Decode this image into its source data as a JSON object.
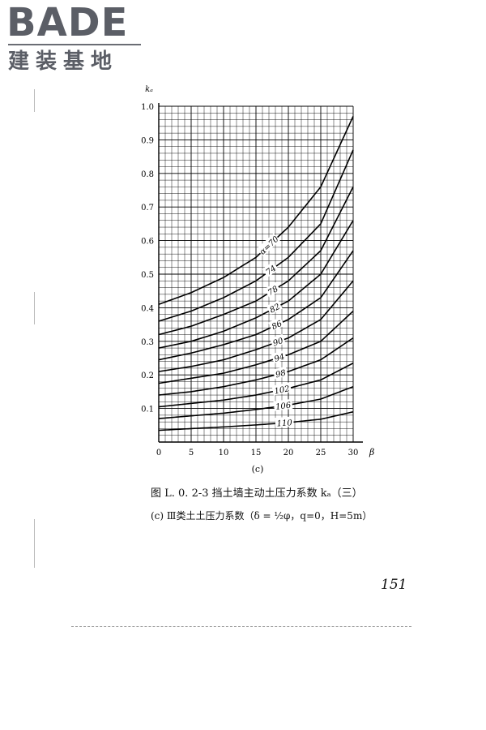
{
  "logo": {
    "wordmark": "BADE",
    "subtitle": "建装基地",
    "color": "#5b5e66"
  },
  "figure": {
    "panel_label": "(c)",
    "caption": "图 L. 0. 2-3   挡土墙主动土压力系数 kₐ（三）",
    "subcaption": "(c) Ⅲ类土土压力系数（δ = ½φ，q=0，H=5m）"
  },
  "page_number": "151",
  "chart_data": {
    "type": "line",
    "title": "",
    "xlabel": "β",
    "ylabel": "kₐ",
    "xlim": [
      0,
      30
    ],
    "ylim": [
      0,
      1.0
    ],
    "x_ticks": [
      0,
      5,
      10,
      15,
      20,
      25,
      30
    ],
    "y_ticks": [
      0.1,
      0.2,
      0.3,
      0.4,
      0.5,
      0.6,
      0.7,
      0.8,
      0.9,
      1.0
    ],
    "y_tick_labels": [
      "0.1",
      "0.2",
      "0.3",
      "0.4",
      "0.5",
      "0.6",
      "0.7",
      "0.8",
      "0.9",
      "1.0"
    ],
    "grid": true,
    "line_color": "#000000",
    "x": [
      0,
      5,
      10,
      15,
      20,
      25,
      30
    ],
    "series": [
      {
        "name": "α=70",
        "label": "α=70",
        "values": [
          0.41,
          0.445,
          0.49,
          0.55,
          0.64,
          0.76,
          0.97
        ]
      },
      {
        "name": "74",
        "label": "74",
        "values": [
          0.36,
          0.39,
          0.43,
          0.48,
          0.55,
          0.65,
          0.87
        ]
      },
      {
        "name": "78",
        "label": "78",
        "values": [
          0.32,
          0.345,
          0.38,
          0.42,
          0.48,
          0.57,
          0.76
        ]
      },
      {
        "name": "82",
        "label": "82",
        "values": [
          0.28,
          0.3,
          0.33,
          0.37,
          0.42,
          0.5,
          0.66
        ]
      },
      {
        "name": "86",
        "label": "86",
        "values": [
          0.245,
          0.265,
          0.29,
          0.32,
          0.365,
          0.43,
          0.57
        ]
      },
      {
        "name": "90",
        "label": "90",
        "values": [
          0.21,
          0.225,
          0.245,
          0.275,
          0.31,
          0.365,
          0.48
        ]
      },
      {
        "name": "94",
        "label": "94",
        "values": [
          0.175,
          0.19,
          0.205,
          0.23,
          0.26,
          0.3,
          0.39
        ]
      },
      {
        "name": "98",
        "label": "98",
        "values": [
          0.14,
          0.15,
          0.165,
          0.185,
          0.21,
          0.245,
          0.31
        ]
      },
      {
        "name": "102",
        "label": "102",
        "values": [
          0.105,
          0.115,
          0.125,
          0.14,
          0.16,
          0.185,
          0.235
        ]
      },
      {
        "name": "106",
        "label": "106",
        "values": [
          0.07,
          0.078,
          0.086,
          0.097,
          0.11,
          0.128,
          0.165
        ]
      },
      {
        "name": "110",
        "label": "110",
        "values": [
          0.035,
          0.04,
          0.045,
          0.051,
          0.058,
          0.068,
          0.09
        ]
      }
    ],
    "label_x": [
      17,
      17.3,
      17.6,
      17.9,
      18.2,
      18.4,
      18.6,
      18.8,
      19,
      19.2,
      19.4
    ]
  }
}
